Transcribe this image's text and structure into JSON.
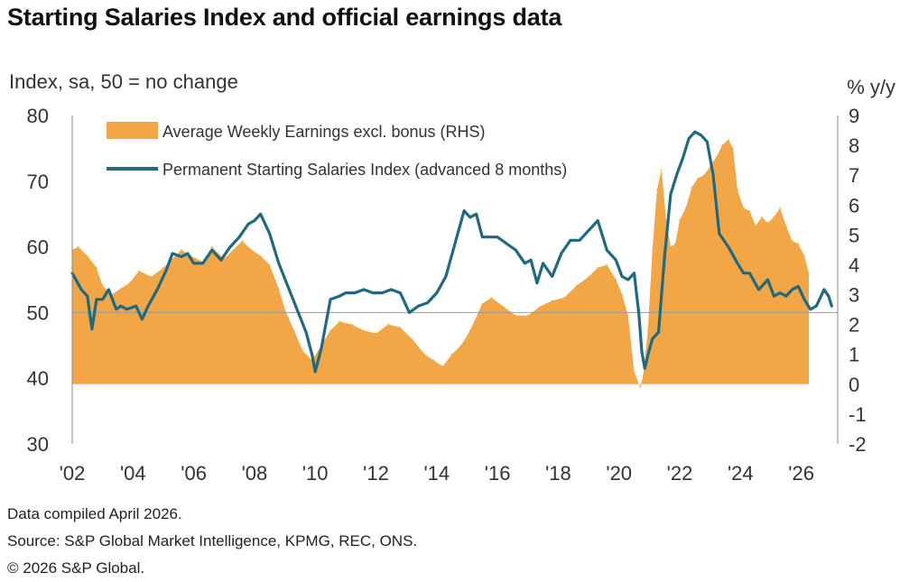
{
  "title": "Starting Salaries Index and official earnings data",
  "footer": {
    "compiled": "Data compiled April 2026.",
    "source": "Source: S&P Global Market Intelligence, KPMG, REC, ONS.",
    "copyright": "© 2026 S&P Global."
  },
  "colors": {
    "bar": "#f2a645",
    "line": "#1d6a82",
    "refline": "#999999",
    "text": "#333333"
  },
  "chart_data": {
    "type": "area+line",
    "left_axis": {
      "label": "Index, sa, 50 = no change",
      "min": 30,
      "max": 80,
      "ticks": [
        30,
        40,
        50,
        60,
        70,
        80
      ]
    },
    "right_axis": {
      "label": "% y/y",
      "min": -2,
      "max": 9,
      "ticks": [
        -2,
        -1,
        0,
        1,
        2,
        3,
        4,
        5,
        6,
        7,
        8,
        9
      ]
    },
    "x_axis": {
      "min": 2002,
      "max": 2027.2,
      "ticks": [
        "'02",
        "'04",
        "'06",
        "'08",
        "'10",
        "'12",
        "'14",
        "'16",
        "'18",
        "'20",
        "'22",
        "'24",
        "'26"
      ],
      "tick_years": [
        2002,
        2004,
        2006,
        2008,
        2010,
        2012,
        2014,
        2016,
        2018,
        2020,
        2022,
        2024,
        2026
      ]
    },
    "reference_line": 50,
    "series": [
      {
        "name": "Average Weekly Earnings excl. bonus (RHS)",
        "kind": "area",
        "axis": "right",
        "x": [
          2002.0,
          2002.2,
          2002.5,
          2002.8,
          2003.0,
          2003.3,
          2003.6,
          2003.9,
          2004.2,
          2004.6,
          2005.0,
          2005.3,
          2005.6,
          2005.9,
          2006.3,
          2006.6,
          2007.0,
          2007.3,
          2007.6,
          2007.9,
          2008.2,
          2008.5,
          2008.8,
          2009.0,
          2009.3,
          2009.6,
          2009.9,
          2010.2,
          2010.5,
          2010.8,
          2011.2,
          2011.6,
          2012.0,
          2012.4,
          2012.8,
          2013.2,
          2013.6,
          2013.9,
          2014.2,
          2014.5,
          2014.8,
          2015.1,
          2015.5,
          2015.8,
          2016.2,
          2016.6,
          2017.0,
          2017.4,
          2017.8,
          2018.2,
          2018.6,
          2019.0,
          2019.3,
          2019.6,
          2019.9,
          2020.1,
          2020.3,
          2020.5,
          2020.7,
          2020.8,
          2020.95,
          2021.1,
          2021.25,
          2021.4,
          2021.55,
          2021.7,
          2021.85,
          2022.0,
          2022.2,
          2022.4,
          2022.6,
          2022.8,
          2023.0,
          2023.2,
          2023.4,
          2023.6,
          2023.75,
          2023.9,
          2024.1,
          2024.3,
          2024.5,
          2024.7,
          2024.9,
          2025.1,
          2025.3,
          2025.5,
          2025.7,
          2025.9,
          2026.1,
          2026.25
        ],
        "values": [
          4.5,
          4.6,
          4.3,
          3.9,
          3.3,
          3.0,
          3.2,
          3.4,
          3.8,
          3.6,
          3.9,
          4.2,
          4.5,
          4.3,
          4.1,
          4.6,
          4.2,
          4.5,
          4.8,
          4.5,
          4.3,
          4.0,
          3.2,
          2.5,
          1.8,
          1.1,
          0.8,
          1.3,
          1.8,
          2.1,
          2.0,
          1.8,
          1.7,
          2.0,
          1.9,
          1.5,
          1.0,
          0.8,
          0.6,
          1.0,
          1.3,
          1.8,
          2.7,
          2.9,
          2.6,
          2.3,
          2.3,
          2.6,
          2.8,
          2.9,
          3.3,
          3.6,
          3.9,
          4.0,
          3.5,
          3.0,
          2.3,
          0.4,
          -0.1,
          0.3,
          1.8,
          4.5,
          6.5,
          7.2,
          5.5,
          4.6,
          4.7,
          5.5,
          5.9,
          6.6,
          6.9,
          7.0,
          7.3,
          7.6,
          8.0,
          8.2,
          7.9,
          6.5,
          5.9,
          5.8,
          5.3,
          5.6,
          5.4,
          5.6,
          5.9,
          5.3,
          4.8,
          4.7,
          4.3,
          3.7
        ]
      },
      {
        "name": "Permanent Starting Salaries Index (advanced 8 months)",
        "kind": "line",
        "axis": "left",
        "x": [
          2002.0,
          2002.3,
          2002.5,
          2002.65,
          2002.8,
          2003.0,
          2003.2,
          2003.45,
          2003.6,
          2003.8,
          2004.1,
          2004.3,
          2004.5,
          2004.8,
          2005.1,
          2005.3,
          2005.6,
          2005.8,
          2006.0,
          2006.3,
          2006.6,
          2006.9,
          2007.2,
          2007.5,
          2007.8,
          2008.0,
          2008.2,
          2008.5,
          2008.8,
          2009.1,
          2009.4,
          2009.7,
          2009.9,
          2010.0,
          2010.2,
          2010.5,
          2010.8,
          2011.0,
          2011.3,
          2011.6,
          2011.9,
          2012.2,
          2012.5,
          2012.8,
          2013.1,
          2013.4,
          2013.7,
          2014.0,
          2014.3,
          2014.6,
          2014.9,
          2015.1,
          2015.3,
          2015.5,
          2015.7,
          2016.0,
          2016.3,
          2016.6,
          2016.9,
          2017.1,
          2017.3,
          2017.5,
          2017.8,
          2018.1,
          2018.4,
          2018.7,
          2019.0,
          2019.3,
          2019.6,
          2019.9,
          2020.1,
          2020.3,
          2020.5,
          2020.65,
          2020.75,
          2020.85,
          2020.95,
          2021.1,
          2021.3,
          2021.5,
          2021.7,
          2021.9,
          2022.1,
          2022.3,
          2022.5,
          2022.7,
          2022.9,
          2023.1,
          2023.3,
          2023.6,
          2023.9,
          2024.1,
          2024.3,
          2024.6,
          2024.9,
          2025.1,
          2025.3,
          2025.5,
          2025.7,
          2025.9,
          2026.1,
          2026.3,
          2026.5,
          2026.75,
          2026.9,
          2027.0
        ],
        "values": [
          56.0,
          53.5,
          52.5,
          47.5,
          52.0,
          52.0,
          53.5,
          50.5,
          51.0,
          50.5,
          51.0,
          49.0,
          51.0,
          53.5,
          56.5,
          59.0,
          58.5,
          59.0,
          57.5,
          57.5,
          59.5,
          58.0,
          60.0,
          61.5,
          63.5,
          64.0,
          65.0,
          62.0,
          57.5,
          54.0,
          50.5,
          47.0,
          43.5,
          41.0,
          44.5,
          52.0,
          52.5,
          53.0,
          53.0,
          53.5,
          53.0,
          53.0,
          53.5,
          53.0,
          50.0,
          51.0,
          51.5,
          53.0,
          55.5,
          60.5,
          65.5,
          64.5,
          65.0,
          61.5,
          61.5,
          61.5,
          60.5,
          59.5,
          57.5,
          58.0,
          54.5,
          57.5,
          55.5,
          59.0,
          61.0,
          61.0,
          62.5,
          64.0,
          59.5,
          58.0,
          55.5,
          55.0,
          56.0,
          50.0,
          44.0,
          41.5,
          43.5,
          46.0,
          47.0,
          58.5,
          68.0,
          71.0,
          73.5,
          76.5,
          77.5,
          77.0,
          76.0,
          71.0,
          62.0,
          60.0,
          57.5,
          56.0,
          56.0,
          53.5,
          55.0,
          52.5,
          53.0,
          52.5,
          53.5,
          54.0,
          52.0,
          50.5,
          51.0,
          53.5,
          52.5,
          51.0
        ]
      }
    ]
  }
}
